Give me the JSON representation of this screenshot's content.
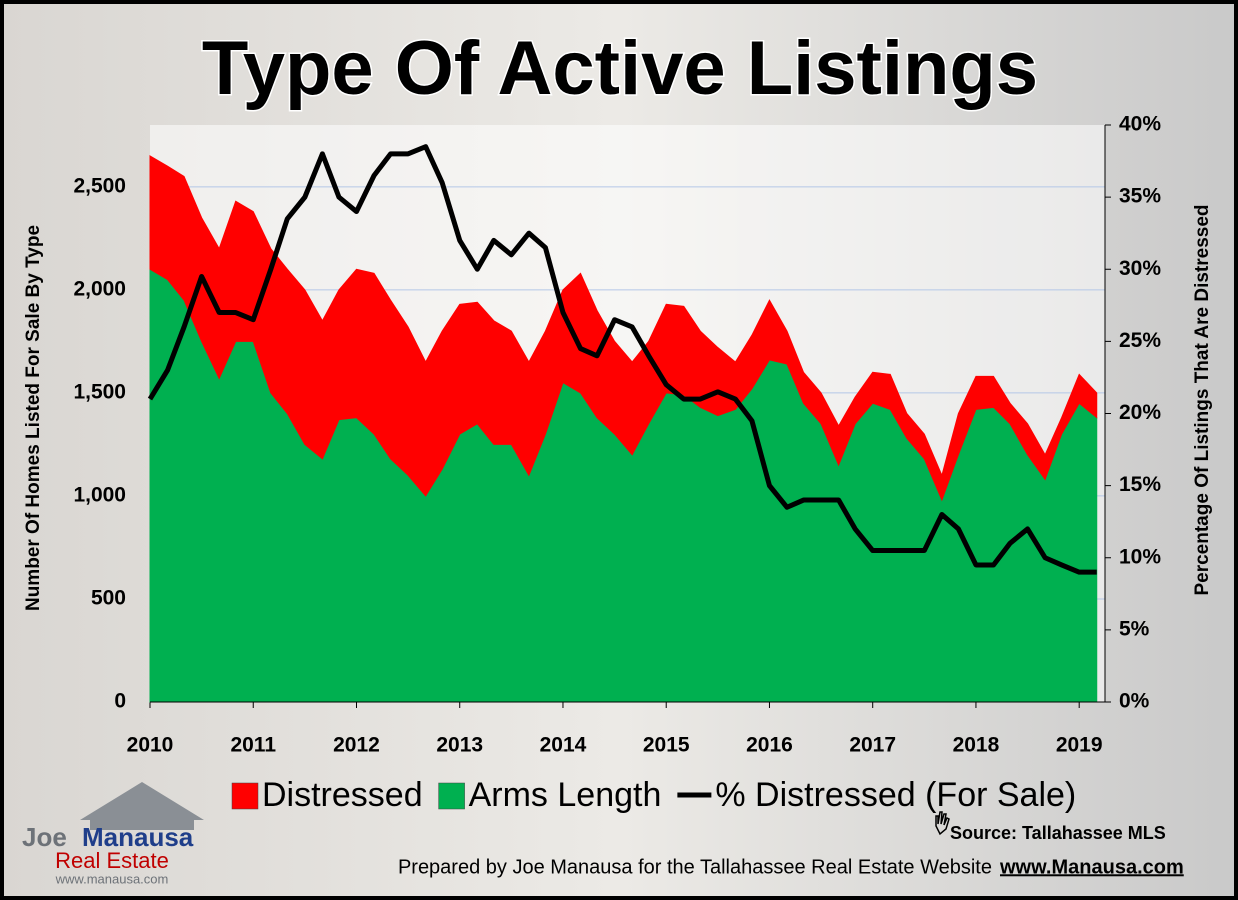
{
  "chart_data": {
    "type": "stacked_area_line",
    "title": "Type Of Active Listings",
    "y_label": "Number Of Homes Listed For Sale By Type",
    "y2_label": "Percentage Of Listings That Are Distressed",
    "source": "Source: Tallahassee MLS",
    "credit": "Prepared by Joe Manausa for the Tallahassee Real Estate Website",
    "credit_link": "www.Manausa.com",
    "logo": {
      "name_1": "Joe",
      "name_2": "Manausa",
      "line_2": "Real Estate",
      "url": "www.manausa.com"
    },
    "x": [
      2010,
      2010.17,
      2010.33,
      2010.5,
      2010.67,
      2010.83,
      2011,
      2011.17,
      2011.33,
      2011.5,
      2011.67,
      2011.83,
      2012,
      2012.17,
      2012.33,
      2012.5,
      2012.67,
      2012.83,
      2013,
      2013.17,
      2013.33,
      2013.5,
      2013.67,
      2013.83,
      2014,
      2014.17,
      2014.33,
      2014.5,
      2014.67,
      2014.83,
      2015,
      2015.17,
      2015.33,
      2015.5,
      2015.67,
      2015.83,
      2016,
      2016.17,
      2016.33,
      2016.5,
      2016.67,
      2016.83,
      2017,
      2017.17,
      2017.33,
      2017.5,
      2017.67,
      2017.83,
      2018,
      2018.17,
      2018.33,
      2018.5,
      2018.67,
      2018.83,
      2019,
      2019.17
    ],
    "xlim": [
      2010,
      2019.25
    ],
    "xticks": [
      2010,
      2011,
      2012,
      2013,
      2014,
      2015,
      2016,
      2017,
      2018,
      2019
    ],
    "ylim": [
      0,
      2800
    ],
    "yticks": [
      0,
      500,
      {
        "value": 1000,
        "label": "1,000"
      },
      {
        "value": 1500,
        "label": "1,500"
      },
      {
        "value": 2000,
        "label": "2,000"
      },
      {
        "value": 2500,
        "label": "2,500"
      }
    ],
    "y2lim": [
      0,
      40
    ],
    "y2ticks": [
      {
        "value": 0,
        "label": "0%"
      },
      {
        "value": 5,
        "label": "5%"
      },
      {
        "value": 10,
        "label": "10%"
      },
      {
        "value": 15,
        "label": "15%"
      },
      {
        "value": 20,
        "label": "20%"
      },
      {
        "value": 25,
        "label": "25%"
      },
      {
        "value": 30,
        "label": "30%"
      },
      {
        "value": 35,
        "label": "35%"
      },
      {
        "value": 40,
        "label": "40%"
      }
    ],
    "grid": true,
    "series": [
      {
        "name": "Arms Length",
        "color": "#00b050",
        "stack": true,
        "values": [
          2100,
          2050,
          1950,
          1750,
          1570,
          1750,
          1750,
          1500,
          1400,
          1250,
          1180,
          1370,
          1380,
          1300,
          1180,
          1100,
          1000,
          1130,
          1300,
          1350,
          1250,
          1250,
          1100,
          1300,
          1550,
          1500,
          1380,
          1300,
          1200,
          1350,
          1500,
          1490,
          1430,
          1390,
          1420,
          1520,
          1660,
          1640,
          1450,
          1350,
          1150,
          1350,
          1450,
          1420,
          1280,
          1180,
          980,
          1200,
          1420,
          1430,
          1350,
          1200,
          1080,
          1300,
          1450,
          1380
        ]
      },
      {
        "name": "Distressed",
        "color": "#ff0000",
        "stack": true,
        "values": [
          550,
          550,
          600,
          600,
          630,
          680,
          630,
          700,
          700,
          750,
          670,
          630,
          720,
          780,
          770,
          720,
          650,
          670,
          630,
          590,
          600,
          550,
          550,
          500,
          450,
          580,
          520,
          450,
          450,
          400,
          430,
          430,
          370,
          330,
          230,
          260,
          290,
          160,
          150,
          150,
          190,
          130,
          150,
          170,
          120,
          120,
          120,
          200,
          160,
          150,
          100,
          150,
          120,
          80,
          140,
          120
        ]
      },
      {
        "name": "% Distressed (For Sale)",
        "color": "#000000",
        "axis": "y2",
        "values": [
          21,
          23,
          26,
          29.5,
          27,
          27,
          26.5,
          30,
          33.5,
          35,
          38,
          35,
          34,
          36.5,
          38,
          38,
          38.5,
          36,
          32,
          30,
          32,
          31,
          32.5,
          31.5,
          27,
          24.5,
          24,
          26.5,
          26,
          24,
          22,
          21,
          21,
          21.5,
          21,
          19.5,
          15,
          13.5,
          14,
          14,
          14,
          12,
          10.5,
          10.5,
          10.5,
          10.5,
          13,
          12,
          9.5,
          9.5,
          11,
          12,
          10,
          9.5,
          9,
          9
        ]
      }
    ],
    "legend": [
      "Distressed",
      "Arms Length",
      "% Distressed (For Sale)"
    ]
  }
}
